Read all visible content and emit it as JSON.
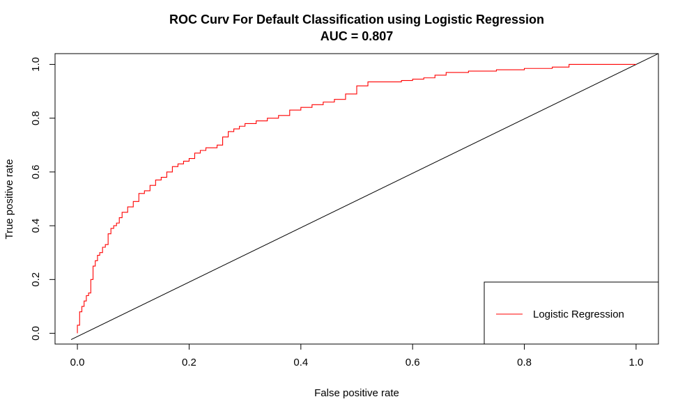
{
  "chart_data": {
    "type": "line",
    "title": "ROC Curv For Default Classification using Logistic Regression",
    "subtitle": "AUC =  0.807",
    "xlabel": "False positive rate",
    "ylabel": "True positive rate",
    "xlim": [
      -0.04,
      1.04
    ],
    "ylim": [
      -0.04,
      1.04
    ],
    "xticks": [
      0.0,
      0.2,
      0.4,
      0.6,
      0.8,
      1.0
    ],
    "xtick_labels": [
      "0.0",
      "0.2",
      "0.4",
      "0.6",
      "0.8",
      "1.0"
    ],
    "yticks": [
      0.0,
      0.2,
      0.4,
      0.6,
      0.8,
      1.0
    ],
    "ytick_labels": [
      "0.0",
      "0.2",
      "0.4",
      "0.6",
      "0.8",
      "1.0"
    ],
    "grid": false,
    "legend": {
      "position": "bottom-right",
      "entries": [
        "Logistic Regression"
      ]
    },
    "series": [
      {
        "name": "Logistic Regression",
        "color": "#ff0000",
        "x": [
          0.0,
          0.0,
          0.004,
          0.008,
          0.012,
          0.016,
          0.02,
          0.024,
          0.028,
          0.032,
          0.036,
          0.04,
          0.045,
          0.05,
          0.055,
          0.06,
          0.065,
          0.07,
          0.075,
          0.08,
          0.09,
          0.1,
          0.11,
          0.12,
          0.13,
          0.14,
          0.15,
          0.16,
          0.17,
          0.18,
          0.19,
          0.2,
          0.21,
          0.22,
          0.23,
          0.24,
          0.25,
          0.26,
          0.27,
          0.28,
          0.29,
          0.3,
          0.32,
          0.34,
          0.36,
          0.38,
          0.4,
          0.42,
          0.44,
          0.46,
          0.48,
          0.5,
          0.52,
          0.55,
          0.58,
          0.6,
          0.62,
          0.64,
          0.66,
          0.7,
          0.75,
          0.8,
          0.85,
          0.88,
          0.92,
          1.0
        ],
        "y": [
          0.0,
          0.03,
          0.08,
          0.1,
          0.12,
          0.14,
          0.15,
          0.2,
          0.25,
          0.27,
          0.29,
          0.3,
          0.32,
          0.33,
          0.37,
          0.39,
          0.4,
          0.41,
          0.43,
          0.45,
          0.47,
          0.49,
          0.52,
          0.53,
          0.55,
          0.57,
          0.58,
          0.6,
          0.62,
          0.63,
          0.64,
          0.65,
          0.67,
          0.68,
          0.69,
          0.69,
          0.7,
          0.73,
          0.75,
          0.76,
          0.77,
          0.78,
          0.79,
          0.8,
          0.81,
          0.83,
          0.84,
          0.85,
          0.86,
          0.87,
          0.89,
          0.92,
          0.935,
          0.935,
          0.94,
          0.945,
          0.95,
          0.96,
          0.97,
          0.975,
          0.98,
          0.985,
          0.99,
          1.0,
          1.0,
          1.0
        ]
      }
    ],
    "reference_line": {
      "x": [
        0.0,
        1.0
      ],
      "y": [
        0.0,
        1.0
      ],
      "color": "#000000"
    }
  }
}
